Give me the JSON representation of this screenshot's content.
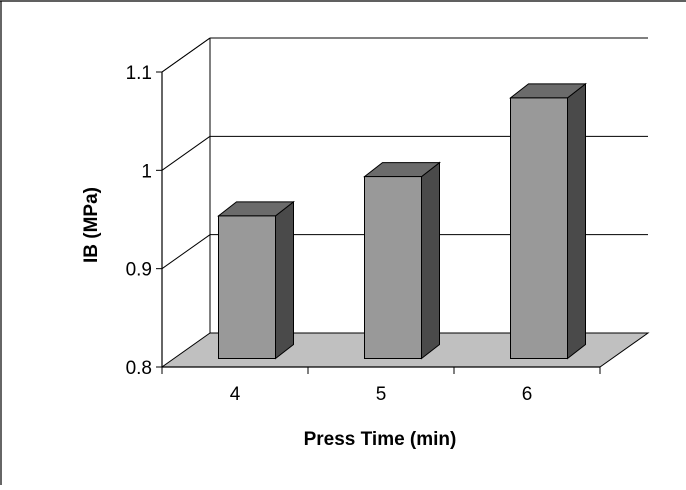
{
  "chart_data": {
    "type": "bar",
    "style": "3d-column",
    "categories": [
      "4",
      "5",
      "6"
    ],
    "values": [
      0.945,
      0.985,
      1.065
    ],
    "title": "",
    "xlabel": "Press Time (min)",
    "ylabel": "IB (MPa)",
    "ylim": [
      0.8,
      1.1
    ],
    "yticks": [
      "0.8",
      "0.9",
      "1",
      "1.1"
    ],
    "grid": true,
    "legend": "none",
    "colors": {
      "bar_front": "#999999",
      "bar_top": "#6b6b6b",
      "bar_side": "#4a4a4a",
      "floor": "#c0c0c0",
      "gridline": "#000000",
      "frame": "#000000"
    }
  }
}
